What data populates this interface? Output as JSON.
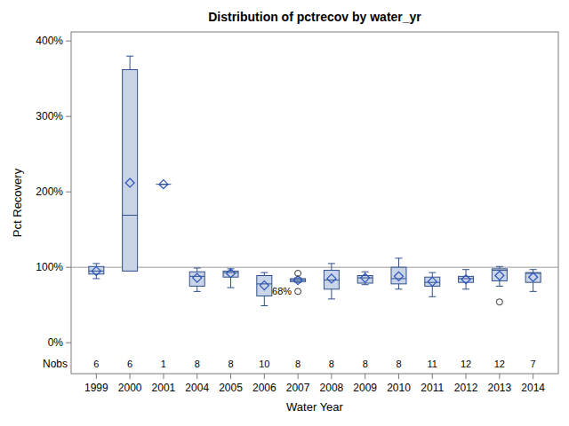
{
  "chart_data": {
    "type": "box",
    "title": "Distribution of pctrecov by water_yr",
    "x_label": "Water Year",
    "y_label": "Pct Recovery",
    "categories": [
      "1999",
      "2000",
      "2001",
      "2004",
      "2005",
      "2006",
      "2007",
      "2008",
      "2009",
      "2010",
      "2011",
      "2012",
      "2013",
      "2014"
    ],
    "boxes": [
      {
        "min": 85,
        "q1": 91,
        "median": 95,
        "q3": 101,
        "max": 105,
        "mean": 95,
        "outliers": []
      },
      {
        "min": 95,
        "q1": 95,
        "median": 169,
        "q3": 362,
        "max": 380,
        "mean": 212,
        "outliers": []
      },
      {
        "min": 210,
        "q1": 210,
        "median": 210,
        "q3": 210,
        "max": 210,
        "mean": 210,
        "outliers": []
      },
      {
        "min": 68,
        "q1": 75,
        "median": 88,
        "q3": 94,
        "max": 99,
        "mean": 86,
        "outliers": []
      },
      {
        "min": 73,
        "q1": 87,
        "median": 93,
        "q3": 95,
        "max": 98,
        "mean": 92,
        "outliers": []
      },
      {
        "min": 49,
        "q1": 62,
        "median": 78,
        "q3": 89,
        "max": 93,
        "mean": 76,
        "outliers": []
      },
      {
        "min": 80,
        "q1": 81,
        "median": 83,
        "q3": 85,
        "max": 86,
        "mean": 83,
        "outliers": [
          92,
          68
        ]
      },
      {
        "min": 58,
        "q1": 71,
        "median": 83,
        "q3": 96,
        "max": 105,
        "mean": 85,
        "outliers": []
      },
      {
        "min": 77,
        "q1": 79,
        "median": 86,
        "q3": 89,
        "max": 94,
        "mean": 86,
        "outliers": []
      },
      {
        "min": 71,
        "q1": 78,
        "median": 85,
        "q3": 100,
        "max": 112,
        "mean": 88,
        "outliers": []
      },
      {
        "min": 61,
        "q1": 75,
        "median": 80,
        "q3": 87,
        "max": 93,
        "mean": 81,
        "outliers": []
      },
      {
        "min": 71,
        "q1": 80,
        "median": 85,
        "q3": 88,
        "max": 97,
        "mean": 84,
        "outliers": []
      },
      {
        "min": 75,
        "q1": 82,
        "median": 96,
        "q3": 98,
        "max": 101,
        "mean": 89,
        "outliers": [
          54
        ]
      },
      {
        "min": 68,
        "q1": 80,
        "median": 92,
        "q3": 93,
        "max": 97,
        "mean": 87,
        "outliers": []
      }
    ],
    "nobs_label": "Nobs",
    "nobs": [
      6,
      6,
      1,
      8,
      8,
      10,
      8,
      8,
      8,
      8,
      11,
      12,
      12,
      7
    ],
    "reference_line": 100,
    "annotations": [
      {
        "text": "68%",
        "x": "2007",
        "value": 68
      }
    ],
    "color": "#c9d5e7",
    "grid": false,
    "ylim": [
      -41,
      412
    ],
    "yticks": [
      {
        "value": 0,
        "label": "0%"
      },
      {
        "value": 100,
        "label": "100%"
      },
      {
        "value": 200,
        "label": "200%"
      },
      {
        "value": 300,
        "label": "300%"
      },
      {
        "value": 400,
        "label": "400%"
      }
    ]
  }
}
